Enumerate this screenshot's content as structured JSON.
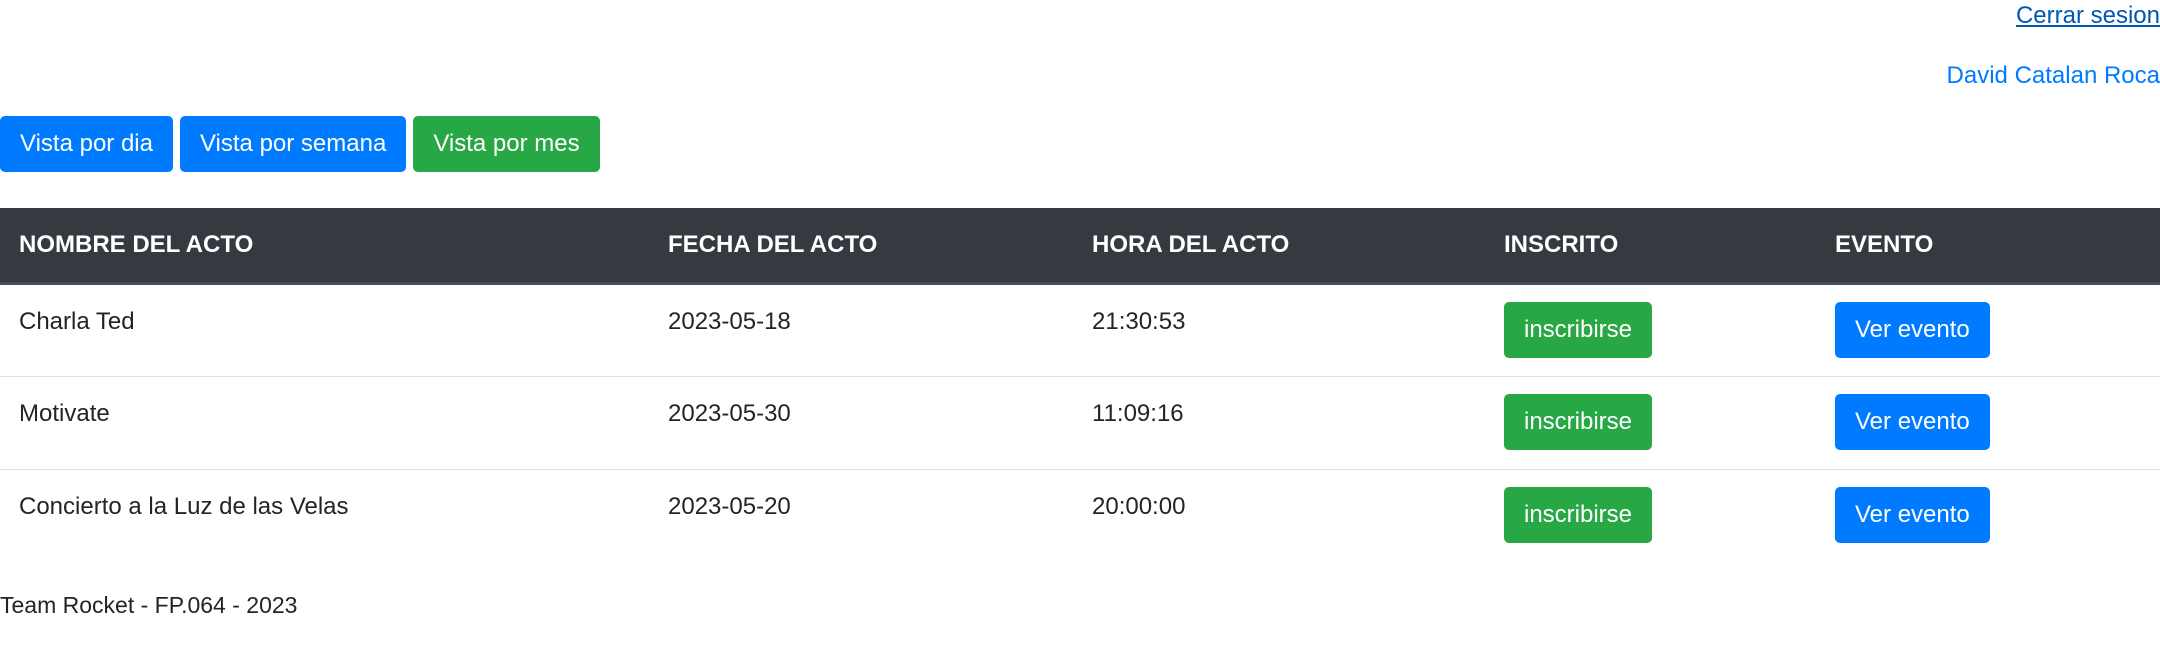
{
  "header": {
    "logout_label": "Cerrar sesion",
    "user_name": "David Catalan Roca"
  },
  "view_buttons": {
    "day_label": "Vista por dia",
    "week_label": "Vista por semana",
    "month_label": "Vista por mes"
  },
  "table": {
    "columns": [
      "NOMBRE DEL ACTO",
      "FECHA DEL ACTO",
      "HORA DEL ACTO",
      "INSCRITO",
      "EVENTO"
    ],
    "rows": [
      {
        "name": "Charla Ted",
        "date": "2023-05-18",
        "time": "21:30:53",
        "enroll_label": "inscribirse",
        "view_label": "Ver evento"
      },
      {
        "name": "Motivate",
        "date": "2023-05-30",
        "time": "11:09:16",
        "enroll_label": "inscribirse",
        "view_label": "Ver evento"
      },
      {
        "name": "Concierto a la Luz de las Velas",
        "date": "2023-05-20",
        "time": "20:00:00",
        "enroll_label": "inscribirse",
        "view_label": "Ver evento"
      }
    ]
  },
  "footer": {
    "text": "Team Rocket - FP.064 - 2023"
  },
  "colors": {
    "primary": "#007bff",
    "success": "#28a745",
    "table_header": "#343a40"
  }
}
